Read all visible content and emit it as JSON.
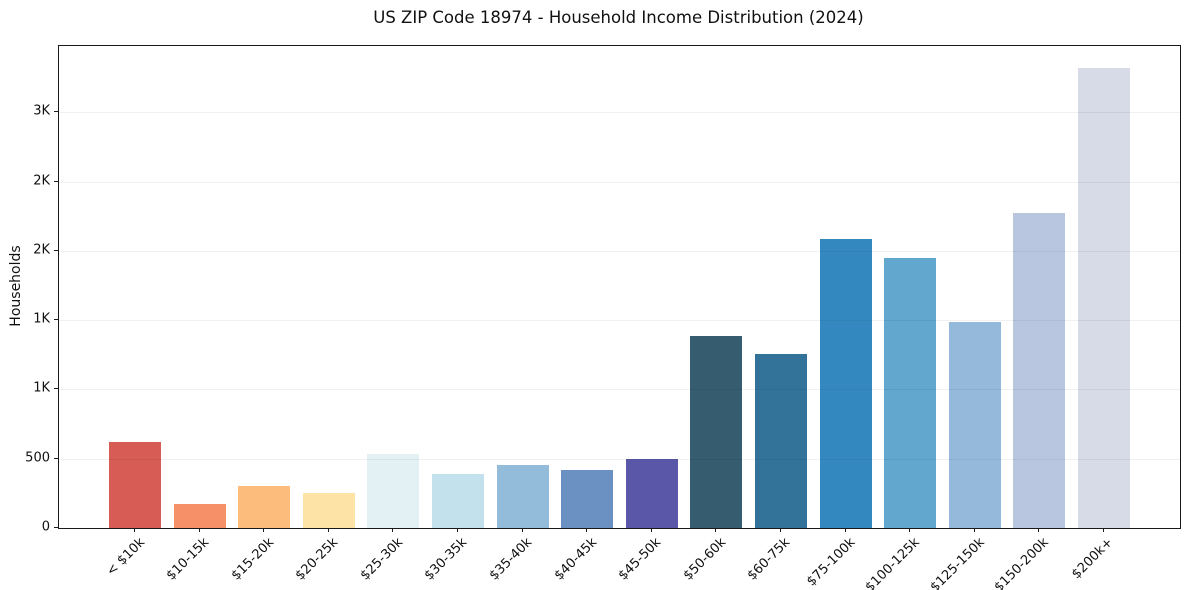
{
  "title": "US ZIP Code 18974 - Household Income Distribution (2024)",
  "chart_data": {
    "type": "bar",
    "title": "US ZIP Code 18974 - Household Income Distribution (2024)",
    "xlabel": "",
    "ylabel": "Households",
    "legend_position": "none",
    "grid": "horizontal-light",
    "background_color": "#ffffff",
    "spine_color": "#1a1a1a",
    "categories": [
      "< $10k",
      "$10-15k",
      "$15-20k",
      "$20-25k",
      "$25-30k",
      "$30-35k",
      "$35-40k",
      "$40-45k",
      "$45-50k",
      "$50-60k",
      "$60-75k",
      "$75-100k",
      "$100-125k",
      "$125-150k",
      "$150-200k",
      "$200k+"
    ],
    "values": [
      620,
      175,
      300,
      255,
      535,
      390,
      455,
      420,
      500,
      1385,
      1255,
      2085,
      1950,
      1490,
      2275,
      3320
    ],
    "bar_colors": [
      "#d75c55",
      "#f59068",
      "#fcbd7c",
      "#fde3a6",
      "#e3f1f5",
      "#c3e1ed",
      "#92bcd9",
      "#6b90c2",
      "#5a57a9",
      "#365c70",
      "#33739a",
      "#3389bf",
      "#61a7ce",
      "#94b9da",
      "#b8c7df",
      "#d7dae7"
    ],
    "ylim": [
      0,
      3480
    ],
    "yticks": [
      {
        "value": 0,
        "label": "0"
      },
      {
        "value": 500,
        "label": "500"
      },
      {
        "value": 1000,
        "label": "1K"
      },
      {
        "value": 1500,
        "label": "1K"
      },
      {
        "value": 2000,
        "label": "2K"
      },
      {
        "value": 2500,
        "label": "2K"
      },
      {
        "value": 3000,
        "label": "3K"
      }
    ]
  }
}
